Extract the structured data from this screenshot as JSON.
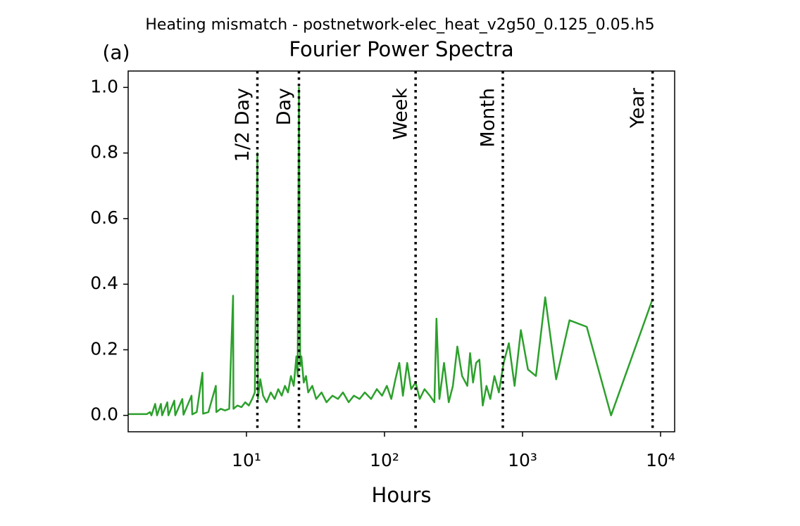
{
  "chart_data": {
    "type": "line",
    "suptitle": "Heating mismatch - postnetwork-elec_heat_v2g50_0.125_0.05.h5",
    "panel_label": "(a)",
    "title": "Fourier Power Spectra",
    "xlabel": "Hours",
    "xscale": "log",
    "color": "#2ca02c",
    "xlim": [
      1.39,
      12650
    ],
    "ylim": [
      -0.05,
      1.05
    ],
    "xticks": [
      {
        "value": 10,
        "label": "10¹"
      },
      {
        "value": 100,
        "label": "10²"
      },
      {
        "value": 1000,
        "label": "10³"
      },
      {
        "value": 10000,
        "label": "10⁴"
      }
    ],
    "yticks": [
      {
        "value": 0,
        "label": "0.0"
      },
      {
        "value": 0.2,
        "label": "0.2"
      },
      {
        "value": 0.4,
        "label": "0.4"
      },
      {
        "value": 0.6,
        "label": "0.6"
      },
      {
        "value": 0.8,
        "label": "0.8"
      },
      {
        "value": 1,
        "label": "1.0"
      }
    ],
    "vlines": [
      {
        "x": 12,
        "label": "1/2 Day"
      },
      {
        "x": 24,
        "label": "Day"
      },
      {
        "x": 168,
        "label": "Week"
      },
      {
        "x": 720,
        "label": "Month"
      },
      {
        "x": 8760,
        "label": "Year"
      }
    ],
    "x": [
      1.0,
      1.9,
      2.0,
      2.05,
      2.18,
      2.25,
      2.4,
      2.45,
      2.67,
      2.72,
      3.0,
      3.05,
      3.43,
      3.5,
      4.0,
      4.05,
      4.36,
      4.8,
      4.85,
      5.3,
      6.0,
      6.05,
      6.5,
      7.0,
      7.5,
      8.0,
      8.05,
      8.6,
      9.2,
      9.8,
      10.4,
      11.0,
      11.5,
      12.0,
      12.1,
      12.6,
      13.2,
      14,
      15,
      16,
      17,
      18,
      19,
      20,
      21,
      22,
      23,
      23.5,
      24,
      24.5,
      25,
      26,
      27,
      28,
      30,
      32,
      35,
      38,
      42,
      46,
      50,
      55,
      60,
      66,
      72,
      80,
      88,
      96,
      104,
      112,
      120,
      128,
      136,
      146,
      156,
      168,
      180,
      195,
      213,
      230,
      238,
      250,
      270,
      292,
      313,
      337,
      365,
      398,
      417,
      438,
      461,
      487,
      515,
      548,
      584,
      626,
      674,
      730,
      796,
      876,
      973,
      1095,
      1251,
      1460,
      1752,
      2190,
      2920,
      4380,
      8760
    ],
    "values": [
      0.004,
      0.004,
      0.01,
      0.0,
      0.035,
      0.0,
      0.035,
      0.0,
      0.04,
      0.0,
      0.045,
      0.0,
      0.05,
      0.002,
      0.06,
      0.003,
      0.01,
      0.13,
      0.005,
      0.01,
      0.09,
      0.01,
      0.02,
      0.015,
      0.02,
      0.365,
      0.02,
      0.03,
      0.025,
      0.04,
      0.03,
      0.05,
      0.07,
      0.8,
      0.05,
      0.11,
      0.06,
      0.04,
      0.07,
      0.05,
      0.08,
      0.06,
      0.09,
      0.07,
      0.12,
      0.09,
      0.18,
      0.12,
      1.0,
      0.15,
      0.18,
      0.1,
      0.12,
      0.07,
      0.09,
      0.05,
      0.07,
      0.04,
      0.06,
      0.05,
      0.07,
      0.04,
      0.06,
      0.05,
      0.07,
      0.05,
      0.08,
      0.06,
      0.09,
      0.05,
      0.11,
      0.16,
      0.06,
      0.16,
      0.08,
      0.1,
      0.05,
      0.08,
      0.06,
      0.04,
      0.295,
      0.05,
      0.16,
      0.04,
      0.09,
      0.21,
      0.12,
      0.09,
      0.19,
      0.1,
      0.16,
      0.17,
      0.03,
      0.09,
      0.05,
      0.12,
      0.07,
      0.16,
      0.22,
      0.09,
      0.26,
      0.14,
      0.12,
      0.36,
      0.11,
      0.29,
      0.27,
      0.0,
      0.355
    ]
  }
}
